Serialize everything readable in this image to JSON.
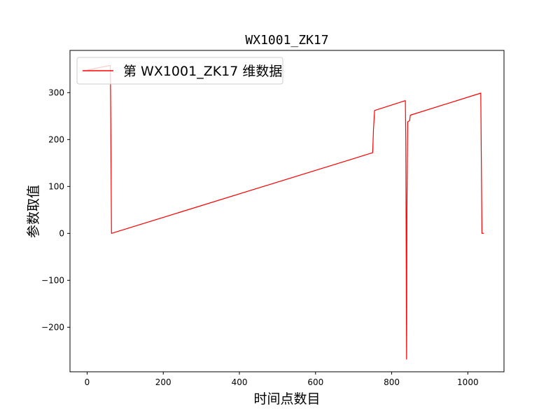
{
  "chart_data": {
    "type": "line",
    "title": "WX1001_ZK17",
    "xlabel": "时间点数目",
    "ylabel": "参数取值",
    "xlim": [
      -45,
      1095
    ],
    "ylim": [
      -295,
      390
    ],
    "xticks": [
      0,
      200,
      400,
      600,
      800,
      1000
    ],
    "yticks": [
      -200,
      -100,
      0,
      100,
      200,
      300
    ],
    "xtick_labels": [
      "0",
      "200",
      "400",
      "600",
      "800",
      "1000"
    ],
    "ytick_labels": [
      "−200",
      "−100",
      "0",
      "100",
      "200",
      "300"
    ],
    "grid": false,
    "legend": {
      "position": "top-left"
    },
    "series": [
      {
        "name": "第 WX1001_ZK17 维数据",
        "color": "#ff0000",
        "x": [
          0,
          61,
          62,
          64,
          750,
          752,
          755,
          836,
          837,
          839,
          840,
          842,
          847,
          849,
          1034,
          1037,
          1042
        ],
        "y": [
          348,
          358,
          250,
          0,
          172,
          220,
          262,
          283,
          200,
          -268,
          50,
          238,
          240,
          252,
          299,
          0,
          0
        ]
      }
    ]
  }
}
